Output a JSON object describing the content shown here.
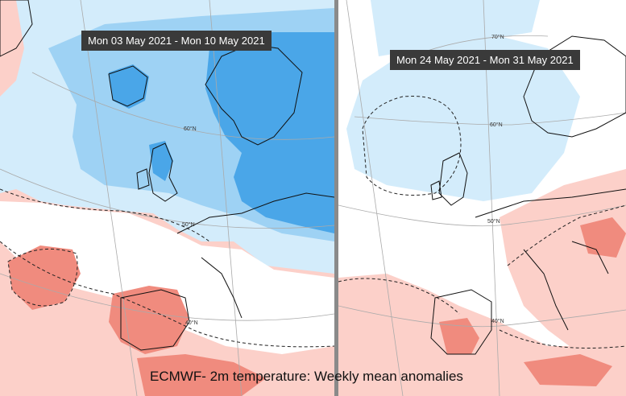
{
  "maps": [
    {
      "period": "Mon 03 May 2021 - Mon 10 May 2021",
      "latitude_labels": [
        "60°N",
        "50°N",
        "40°N"
      ]
    },
    {
      "period": "Mon 24 May 2021 - Mon 31 May 2021",
      "latitude_labels": [
        "70°N",
        "60°N",
        "50°N",
        "40°N"
      ]
    }
  ],
  "caption": "ECMWF- 2m temperature: Weekly mean anomalies",
  "colors": {
    "cold_light": "#d3ecfb",
    "cold_medium": "#9ed2f4",
    "cold_strong": "#4aa6e8",
    "warm_light": "#fcd0c9",
    "warm_strong": "#f08b7e",
    "neutral": "#ffffff",
    "divider": "#8a8a8a"
  }
}
